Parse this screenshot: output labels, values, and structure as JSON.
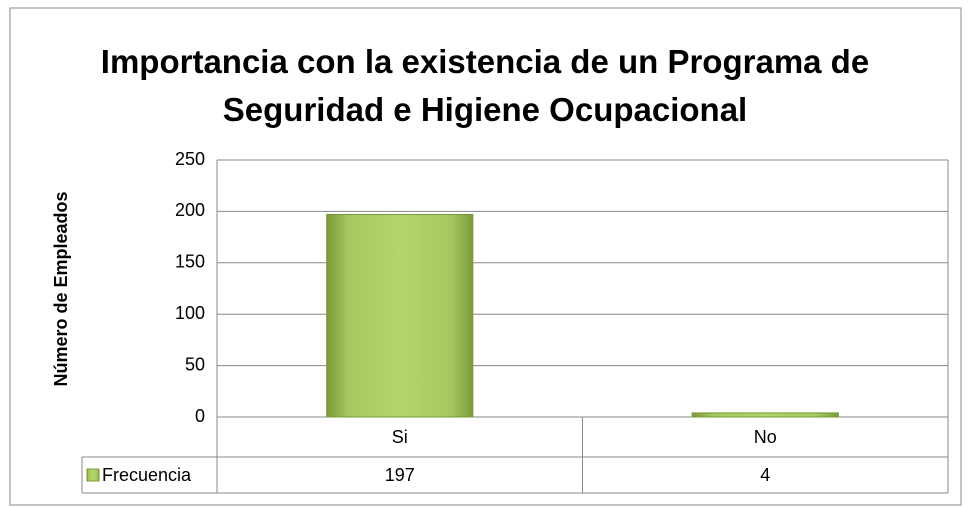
{
  "chart_data": {
    "type": "bar",
    "title": "Importancia con la existencia de un Programa de Seguridad e Higiene Ocupacional",
    "y_label": "Número de Empleados",
    "categories": [
      "Si",
      "No"
    ],
    "series": [
      {
        "name": "Frecuencia",
        "color": "#9bbb59",
        "values": [
          197,
          4
        ]
      }
    ],
    "ylim": [
      0,
      250
    ],
    "yticks": [
      0,
      50,
      100,
      150,
      200,
      250
    ],
    "grid": true,
    "data_table": true
  }
}
